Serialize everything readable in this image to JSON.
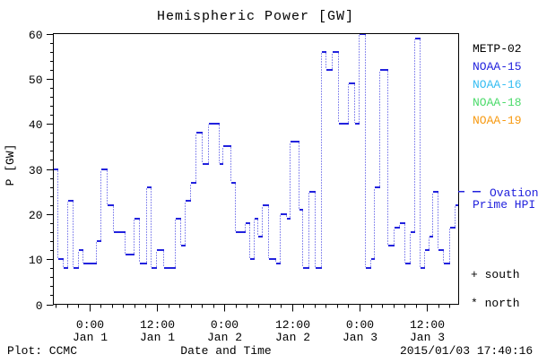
{
  "title": "Hemispheric Power [GW]",
  "footer": {
    "plot_credit": "Plot: CCMC",
    "timestamp": "2015/01/03 17:40:16"
  },
  "axes": {
    "x": {
      "label": "Date and Time"
    },
    "y": {
      "label": "P [GW]",
      "tick_labels": [
        "0",
        "10",
        "20",
        "30",
        "40",
        "50",
        "60"
      ]
    }
  },
  "legend": {
    "satellites": [
      {
        "name": "METP-02",
        "color": "#000000"
      },
      {
        "name": "NOAA-15",
        "color": "#2222dd"
      },
      {
        "name": "NOAA-16",
        "color": "#35bdf2"
      },
      {
        "name": "NOAA-18",
        "color": "#4cdb6b"
      },
      {
        "name": "NOAA-19",
        "color": "#f79a12"
      }
    ],
    "line_entry": {
      "label_line1": "Ovation",
      "label_line2": "Prime HPI",
      "color": "#2222dd"
    },
    "marker_entries": [
      {
        "symbol": "+",
        "label": "south"
      },
      {
        "symbol": "*",
        "label": "north"
      }
    ]
  },
  "chart_data": {
    "type": "line",
    "style": "step-after; solid horizontal segments, dotted vertical connectors",
    "title": "Hemispheric Power [GW]",
    "xlabel": "Date and Time",
    "ylabel": "P [GW]",
    "ylim": [
      0,
      60
    ],
    "y_major_tick_interval": 10,
    "y_minor_tick_interval": 2,
    "x_range_hours": 72,
    "x_minor_tick_interval_hours": 2,
    "x_major_ticks": [
      {
        "t": 6.4,
        "time": "0:00",
        "date": "Jan 1"
      },
      {
        "t": 18.4,
        "time": "12:00",
        "date": "Jan 1"
      },
      {
        "t": 30.4,
        "time": "0:00",
        "date": "Jan 2"
      },
      {
        "t": 42.4,
        "time": "12:00",
        "date": "Jan 2"
      },
      {
        "t": 54.4,
        "time": "0:00",
        "date": "Jan 3"
      },
      {
        "t": 66.4,
        "time": "12:00",
        "date": "Jan 3"
      }
    ],
    "series": [
      {
        "name": "Ovation Prime HPI",
        "color": "#2222dd",
        "points_t_hours_gw": [
          [
            0,
            30
          ],
          [
            0.95,
            10
          ],
          [
            1.91,
            8
          ],
          [
            2.7,
            23
          ],
          [
            3.66,
            8
          ],
          [
            4.53,
            12
          ],
          [
            5.4,
            9
          ],
          [
            7.79,
            14
          ],
          [
            8.58,
            30
          ],
          [
            9.7,
            22
          ],
          [
            10.81,
            16
          ],
          [
            12.87,
            11
          ],
          [
            14.46,
            19
          ],
          [
            15.42,
            9
          ],
          [
            16.69,
            26
          ],
          [
            17.48,
            8
          ],
          [
            18.44,
            12
          ],
          [
            19.71,
            8
          ],
          [
            21.78,
            19
          ],
          [
            22.73,
            13
          ],
          [
            23.52,
            23
          ],
          [
            24.48,
            27
          ],
          [
            25.43,
            38
          ],
          [
            26.54,
            31
          ],
          [
            27.66,
            40
          ],
          [
            29.56,
            31
          ],
          [
            30.2,
            35
          ],
          [
            31.63,
            27
          ],
          [
            32.42,
            16
          ],
          [
            34.17,
            18
          ],
          [
            34.97,
            10
          ],
          [
            35.76,
            19
          ],
          [
            36.4,
            15
          ],
          [
            37.19,
            22
          ],
          [
            38.31,
            10
          ],
          [
            39.58,
            9
          ],
          [
            40.37,
            20
          ],
          [
            41.48,
            19
          ],
          [
            42.12,
            36
          ],
          [
            43.71,
            21
          ],
          [
            44.34,
            8
          ],
          [
            45.46,
            25
          ],
          [
            46.57,
            8
          ],
          [
            47.68,
            56
          ],
          [
            48.56,
            52
          ],
          [
            49.59,
            56
          ],
          [
            50.7,
            40
          ],
          [
            52.45,
            49
          ],
          [
            53.56,
            40
          ],
          [
            54.36,
            60
          ],
          [
            55.47,
            8
          ],
          [
            56.42,
            10
          ],
          [
            57.06,
            26
          ],
          [
            58.01,
            52
          ],
          [
            59.44,
            13
          ],
          [
            60.56,
            17
          ],
          [
            61.51,
            18
          ],
          [
            62.47,
            9
          ],
          [
            63.42,
            16
          ],
          [
            64.22,
            59
          ],
          [
            65.17,
            8
          ],
          [
            65.96,
            12
          ],
          [
            66.76,
            15
          ],
          [
            67.39,
            25
          ],
          [
            68.35,
            12
          ],
          [
            69.3,
            9
          ],
          [
            70.41,
            17
          ],
          [
            71.37,
            22
          ]
        ]
      }
    ]
  }
}
